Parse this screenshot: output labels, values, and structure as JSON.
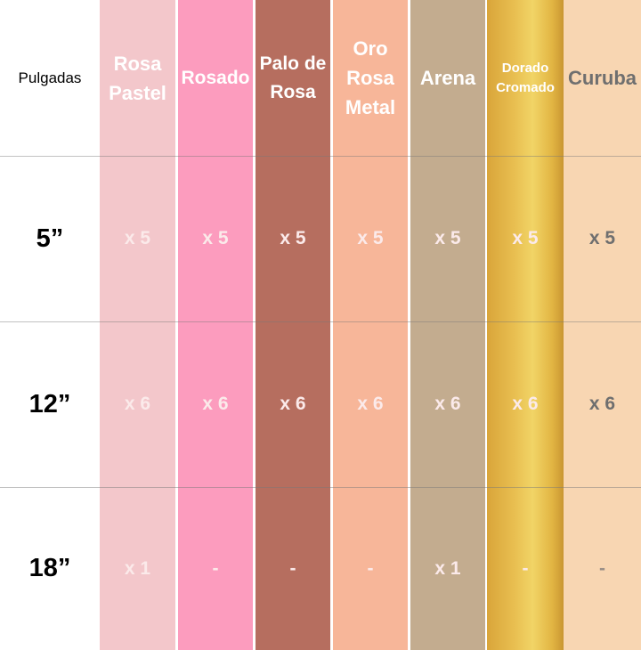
{
  "header_label": "Pulgadas",
  "sizes": [
    "5”",
    "12”",
    "18”"
  ],
  "columns": [
    {
      "name": "Rosa Pastel",
      "color": "#f3c7cb",
      "values": [
        "x 5",
        "x 6",
        "x 1"
      ]
    },
    {
      "name": "Rosado",
      "color": "#fc9cbe",
      "values": [
        "x 5",
        "x 6",
        "-"
      ]
    },
    {
      "name": "Palo de Rosa",
      "color": "#b66e5f",
      "values": [
        "x 5",
        "x 6",
        "-"
      ]
    },
    {
      "name": "Oro Rosa Metal",
      "color": "#f7b699",
      "values": [
        "x 5",
        "x 6",
        "-"
      ]
    },
    {
      "name": "Arena",
      "color": "#c3ac8f",
      "values": [
        "x 5",
        "x 6",
        "x 1"
      ]
    },
    {
      "name": "Dorado Cromado",
      "color": "#e2b543",
      "values": [
        "x 5",
        "x 6",
        "-"
      ]
    },
    {
      "name": "Curuba",
      "color": "#f8d6b2",
      "values": [
        "x 5",
        "x 6",
        "-"
      ]
    }
  ]
}
